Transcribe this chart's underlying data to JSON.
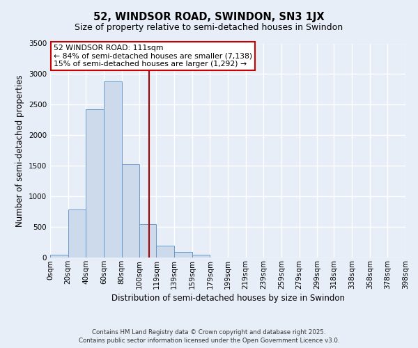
{
  "title": "52, WINDSOR ROAD, SWINDON, SN3 1JX",
  "subtitle": "Size of property relative to semi-detached houses in Swindon",
  "xlabel": "Distribution of semi-detached houses by size in Swindon",
  "ylabel": "Number of semi-detached properties",
  "bin_labels": [
    "0sqm",
    "20sqm",
    "40sqm",
    "60sqm",
    "80sqm",
    "100sqm",
    "119sqm",
    "139sqm",
    "159sqm",
    "179sqm",
    "199sqm",
    "219sqm",
    "239sqm",
    "259sqm",
    "279sqm",
    "299sqm",
    "318sqm",
    "338sqm",
    "358sqm",
    "378sqm",
    "398sqm"
  ],
  "bin_edges": [
    0,
    20,
    40,
    60,
    80,
    100,
    119,
    139,
    159,
    179,
    199,
    219,
    239,
    259,
    279,
    299,
    318,
    338,
    358,
    378,
    398
  ],
  "bar_heights": [
    50,
    780,
    2420,
    2880,
    1520,
    550,
    190,
    90,
    40,
    0,
    0,
    0,
    0,
    0,
    0,
    0,
    0,
    0,
    0,
    0
  ],
  "bar_color": "#ccdaeb",
  "bar_edge_color": "#6699cc",
  "property_size": 111,
  "vline_color": "#aa0000",
  "annotation_text": "52 WINDSOR ROAD: 111sqm\n← 84% of semi-detached houses are smaller (7,138)\n15% of semi-detached houses are larger (1,292) →",
  "annotation_box_color": "white",
  "annotation_box_edge_color": "#cc0000",
  "ylim": [
    0,
    3500
  ],
  "yticks": [
    0,
    500,
    1000,
    1500,
    2000,
    2500,
    3000,
    3500
  ],
  "footer1": "Contains HM Land Registry data © Crown copyright and database right 2025.",
  "footer2": "Contains public sector information licensed under the Open Government Licence v3.0.",
  "background_color": "#e8eef8",
  "grid_color": "white",
  "title_fontsize": 10.5,
  "subtitle_fontsize": 9.0,
  "tick_fontsize": 7.5,
  "label_fontsize": 8.5,
  "annotation_fontsize": 7.8,
  "footer_fontsize": 6.2
}
